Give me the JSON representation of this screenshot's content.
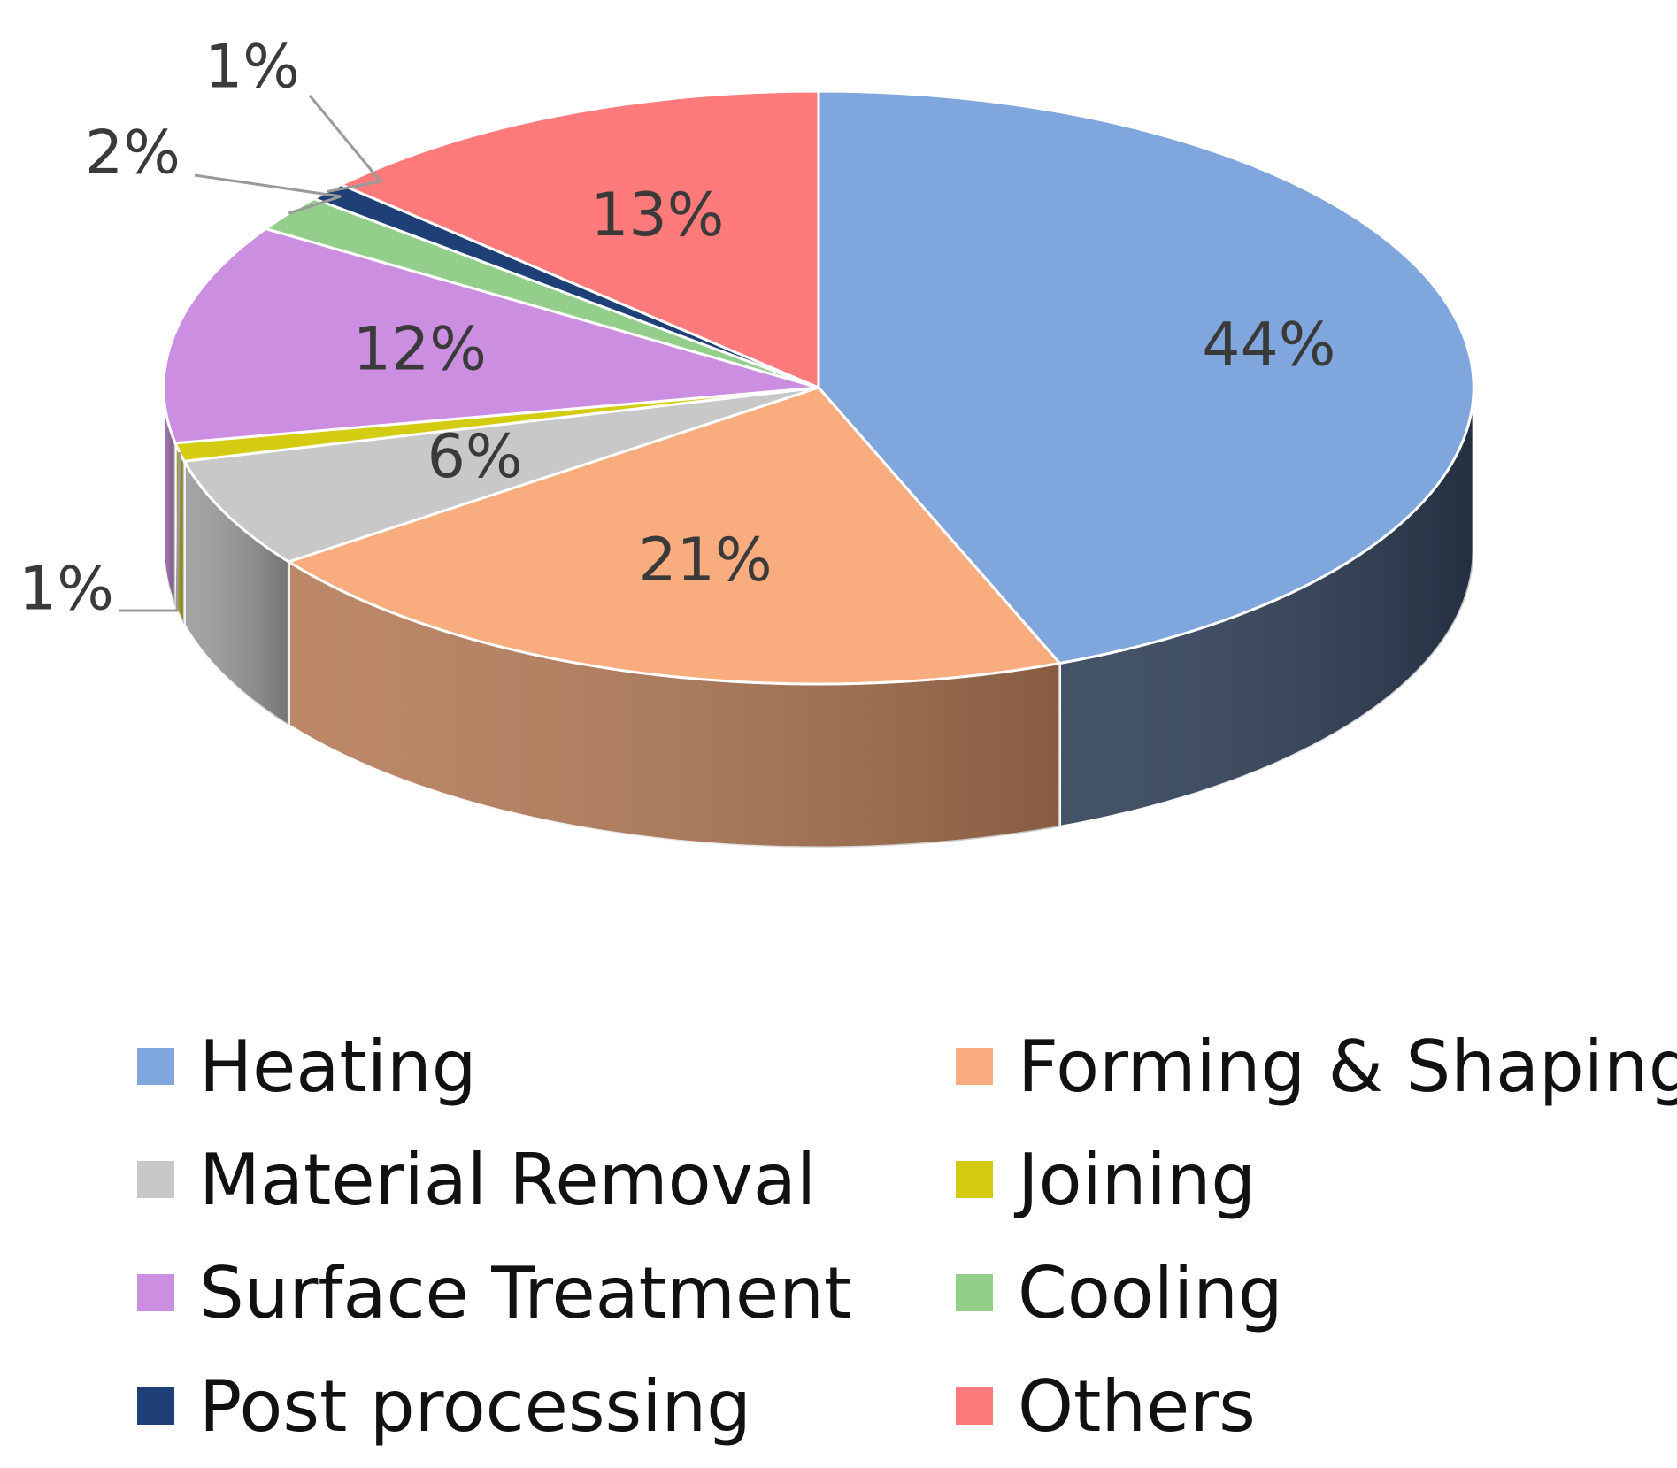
{
  "chart_data": {
    "type": "pie",
    "style": "3d",
    "legend_position": "bottom",
    "slices": [
      {
        "name": "Heating",
        "value": 44,
        "label": "44%",
        "color": "#7fa6dd",
        "side_color": "#2f3f57"
      },
      {
        "name": "Forming & Shaping",
        "value": 21,
        "label": "21%",
        "color": "#f9ad7f",
        "side_color": "#b47a56"
      },
      {
        "name": "Material Removal",
        "value": 6,
        "label": "6%",
        "color": "#c8c8c8",
        "side_color": "#9a9a9a"
      },
      {
        "name": "Joining",
        "value": 1,
        "label": "1%",
        "color": "#d4cc12",
        "side_color": "#9e980c"
      },
      {
        "name": "Surface Treatment",
        "value": 12,
        "label": "12%",
        "color": "#cc8ee0",
        "side_color": "#9468a4"
      },
      {
        "name": "Cooling",
        "value": 2,
        "label": "2%",
        "color": "#93cf8b",
        "side_color": "#6a9864"
      },
      {
        "name": "Post processing",
        "value": 1,
        "label": "1%",
        "color": "#1f3f77",
        "side_color": "#132a52"
      },
      {
        "name": "Others",
        "value": 13,
        "label": "13%",
        "color": "#ff7b7b",
        "side_color": "#b85656"
      }
    ]
  },
  "legend": {
    "items": [
      {
        "label": "Heating",
        "color": "#7fa6dd"
      },
      {
        "label": "Forming & Shaping",
        "color": "#f9ad7f"
      },
      {
        "label": "Material Removal",
        "color": "#c8c8c8"
      },
      {
        "label": "Joining",
        "color": "#d4cc12"
      },
      {
        "label": "Surface Treatment",
        "color": "#cc8ee0"
      },
      {
        "label": "Cooling",
        "color": "#93cf8b"
      },
      {
        "label": "Post processing",
        "color": "#1f3f77"
      },
      {
        "label": "Others",
        "color": "#ff7b7b"
      }
    ]
  }
}
